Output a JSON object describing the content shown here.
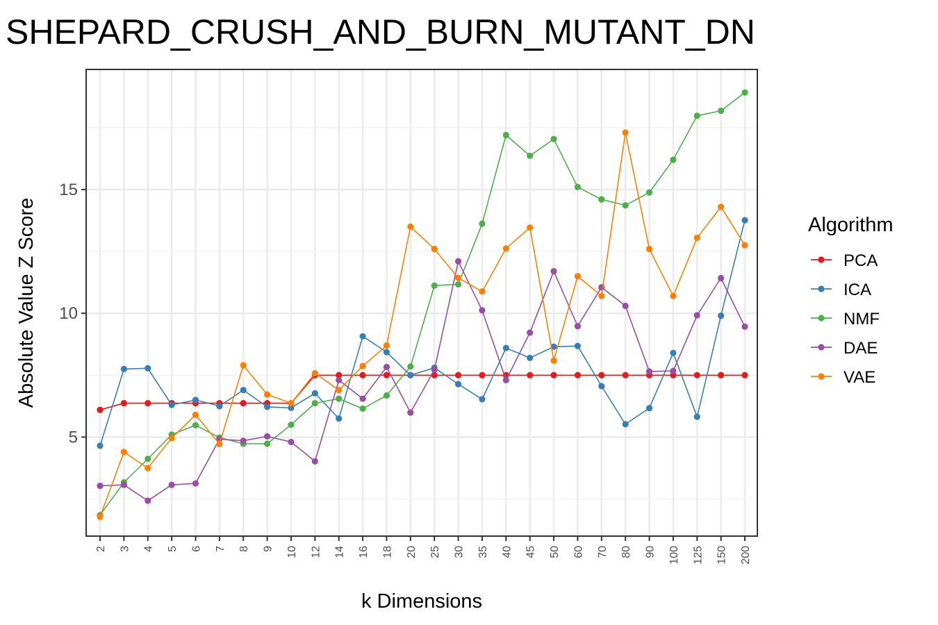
{
  "chart_data": {
    "type": "line",
    "title": "SHEPARD_CRUSH_AND_BURN_MUTANT_DN",
    "xlabel": "k Dimensions",
    "ylabel": "Absolute Value Z Score",
    "categories": [
      "2",
      "3",
      "4",
      "5",
      "6",
      "7",
      "8",
      "9",
      "10",
      "12",
      "14",
      "16",
      "18",
      "20",
      "25",
      "30",
      "35",
      "40",
      "45",
      "50",
      "60",
      "70",
      "80",
      "90",
      "100",
      "125",
      "150",
      "200"
    ],
    "y_ticks": [
      5,
      10,
      15
    ],
    "ylim": [
      1.0,
      19.85
    ],
    "grid": true,
    "legend": {
      "title": "Algorithm",
      "position": "right"
    },
    "series": [
      {
        "name": "PCA",
        "color": "#e41a1c",
        "values": [
          6.1,
          6.37,
          6.37,
          6.37,
          6.37,
          6.37,
          6.37,
          6.37,
          6.37,
          7.5,
          7.5,
          7.5,
          7.5,
          7.5,
          7.5,
          7.5,
          7.5,
          7.5,
          7.5,
          7.5,
          7.5,
          7.5,
          7.5,
          7.5,
          7.5,
          7.5,
          7.5,
          7.5
        ]
      },
      {
        "name": "ICA",
        "color": "#377eb8",
        "values": [
          4.65,
          7.75,
          7.78,
          6.3,
          6.5,
          6.25,
          6.9,
          6.22,
          6.18,
          6.77,
          5.75,
          9.07,
          8.43,
          7.5,
          7.8,
          7.14,
          6.53,
          8.6,
          8.2,
          8.65,
          8.68,
          7.06,
          5.52,
          6.17,
          8.4,
          5.82,
          9.9,
          13.76
        ]
      },
      {
        "name": "NMF",
        "color": "#4daf4a",
        "values": [
          1.85,
          3.17,
          4.12,
          5.1,
          5.48,
          4.98,
          4.73,
          4.73,
          5.5,
          6.37,
          6.55,
          6.15,
          6.68,
          7.85,
          11.12,
          11.17,
          13.62,
          17.2,
          16.36,
          17.04,
          15.1,
          14.6,
          14.36,
          14.88,
          16.2,
          17.98,
          18.18,
          18.92
        ]
      },
      {
        "name": "DAE",
        "color": "#984ea3",
        "values": [
          3.03,
          3.07,
          2.43,
          3.07,
          3.13,
          4.92,
          4.85,
          5.03,
          4.8,
          4.02,
          7.3,
          6.55,
          7.83,
          5.99,
          7.72,
          12.1,
          10.12,
          7.3,
          9.22,
          11.7,
          9.48,
          11.05,
          10.3,
          7.65,
          7.67,
          9.92,
          11.42,
          9.46
        ]
      },
      {
        "name": "VAE",
        "color": "#ff7f00",
        "values": [
          1.78,
          4.4,
          3.75,
          4.96,
          5.9,
          4.72,
          7.9,
          6.72,
          6.37,
          7.58,
          6.9,
          7.87,
          8.7,
          13.5,
          12.6,
          11.43,
          10.88,
          12.62,
          13.46,
          8.09,
          11.5,
          10.7,
          17.3,
          12.6,
          10.7,
          13.05,
          14.3,
          12.75
        ]
      }
    ]
  }
}
